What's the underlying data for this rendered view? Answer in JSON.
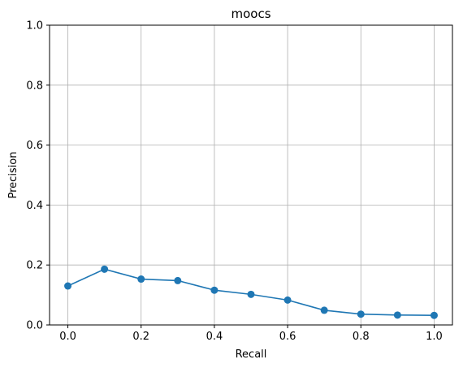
{
  "chart_data": {
    "type": "line",
    "title": "moocs",
    "xlabel": "Recall",
    "ylabel": "Precision",
    "xlim": [
      -0.05,
      1.05
    ],
    "ylim": [
      0,
      1
    ],
    "grid": true,
    "x_ticks": [
      0.0,
      0.2,
      0.4,
      0.6,
      0.8,
      1.0
    ],
    "x_tick_labels": [
      "0.0",
      "0.2",
      "0.4",
      "0.6",
      "0.8",
      "1.0"
    ],
    "y_ticks": [
      0.0,
      0.2,
      0.4,
      0.6,
      0.8,
      1.0
    ],
    "y_tick_labels": [
      "0.0",
      "0.2",
      "0.4",
      "0.6",
      "0.8",
      "1.0"
    ],
    "series": [
      {
        "color": "#1f77b4",
        "marker": "circle",
        "x": [
          0.0,
          0.1,
          0.2,
          0.3,
          0.4,
          0.5,
          0.6,
          0.7,
          0.8,
          0.9,
          1.0
        ],
        "y": [
          0.13,
          0.186,
          0.153,
          0.148,
          0.116,
          0.102,
          0.083,
          0.049,
          0.036,
          0.033,
          0.032
        ]
      }
    ]
  }
}
